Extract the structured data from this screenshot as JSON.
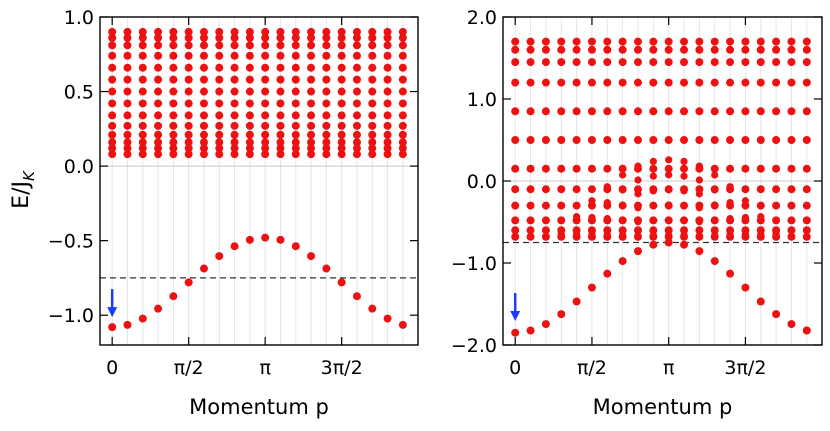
{
  "figure": {
    "ylabel_main": "E/J",
    "ylabel_sub": "K",
    "colors": {
      "dots": "#ee1111",
      "arrow": "#1a3cff",
      "grid": "#e6e6e6",
      "zero": "#c8c8c8",
      "dash": "#333333"
    }
  },
  "chart_data": [
    {
      "type": "scatter",
      "title": "",
      "xlabel": "Momentum p",
      "ylabel": "E/J_K",
      "xlim": [
        -0.25,
        6.28
      ],
      "ylim": [
        -1.2,
        1.0
      ],
      "yticks": [
        1.0,
        0.5,
        0.0,
        -0.5,
        -1.0
      ],
      "ytick_labels": [
        "1.0",
        "0.5",
        "0.0",
        "−0.5",
        "−1.0"
      ],
      "xticks": [
        0,
        1.5708,
        3.1416,
        4.7124
      ],
      "xtick_labels": [
        "0",
        "π/2",
        "π",
        "3π/2"
      ],
      "n_k": 20,
      "dashed_line_y": -0.75,
      "zero_line_y": 0.0,
      "bound_state": {
        "E0": -0.78,
        "amplitude": 0.3
      },
      "continuum_levels": [
        0.08,
        0.12,
        0.16,
        0.21,
        0.27,
        0.34,
        0.42,
        0.5,
        0.58,
        0.66,
        0.74,
        0.81,
        0.86,
        0.9
      ],
      "marker": {
        "k_index": 0,
        "E": -1.08,
        "label": "ground-state arrow"
      }
    },
    {
      "type": "scatter",
      "title": "",
      "xlabel": "Momentum p",
      "ylabel": "",
      "xlim": [
        -0.25,
        6.28
      ],
      "ylim": [
        -2.0,
        2.0
      ],
      "yticks": [
        2.0,
        1.0,
        0.0,
        -1.0,
        -2.0
      ],
      "ytick_labels": [
        "2.0",
        "1.0",
        "0.0",
        "−1.0",
        "−2.0"
      ],
      "xticks": [
        0,
        1.5708,
        3.1416,
        4.7124
      ],
      "xtick_labels": [
        "0",
        "π/2",
        "π",
        "3π/2"
      ],
      "n_k": 20,
      "dashed_line_y": -0.75,
      "zero_line_y": 0.0,
      "bound_state": {
        "E0": -1.3,
        "amplitude": 0.55
      },
      "continuum_levels": [
        -0.68,
        -0.6,
        -0.48,
        -0.3,
        -0.1,
        0.15,
        0.5,
        0.85,
        1.2,
        1.45,
        1.6,
        1.7
      ],
      "extra_band": {
        "E_top": 0.35,
        "E_bottom": -0.75
      },
      "marker": {
        "k_index": 0,
        "E": -1.83,
        "label": "ground-state arrow"
      }
    }
  ]
}
